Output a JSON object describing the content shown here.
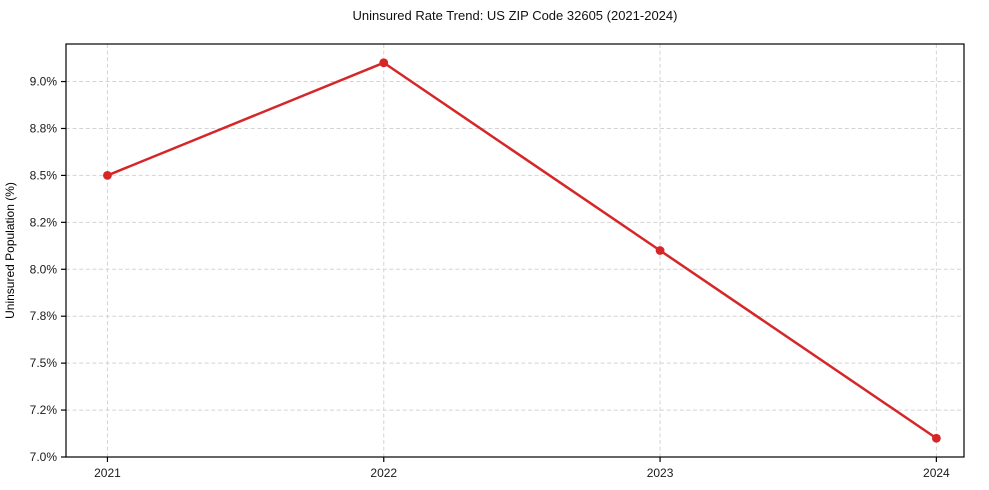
{
  "chart_data": {
    "type": "line",
    "title": "Uninsured Rate Trend: US ZIP Code 32605 (2021-2024)",
    "xlabel": "",
    "ylabel": "Uninsured Population (%)",
    "x": [
      2021,
      2022,
      2023,
      2024
    ],
    "xtick_labels": [
      "2021",
      "2022",
      "2023",
      "2024"
    ],
    "series": [
      {
        "name": "uninsured-rate",
        "values": [
          8.5,
          9.1,
          8.1,
          7.1
        ]
      }
    ],
    "yticks": [
      {
        "value": 7.0,
        "label": "7.0%"
      },
      {
        "value": 7.25,
        "label": "7.2%"
      },
      {
        "value": 7.5,
        "label": "7.5%"
      },
      {
        "value": 7.75,
        "label": "7.8%"
      },
      {
        "value": 8.0,
        "label": "8.0%"
      },
      {
        "value": 8.25,
        "label": "8.2%"
      },
      {
        "value": 8.5,
        "label": "8.5%"
      },
      {
        "value": 8.75,
        "label": "8.8%"
      },
      {
        "value": 9.0,
        "label": "9.0%"
      }
    ],
    "ylim": [
      7.0,
      9.2
    ],
    "xlim": [
      2020.85,
      2024.1
    ],
    "grid": true,
    "grid_style": "dashed",
    "legend": "none",
    "marker": "circle",
    "colors": {
      "line": "#d62728",
      "marker": "#d62728",
      "grid": "#d4d4d4",
      "axis": "#000000",
      "text": "#1a1a1a"
    }
  }
}
